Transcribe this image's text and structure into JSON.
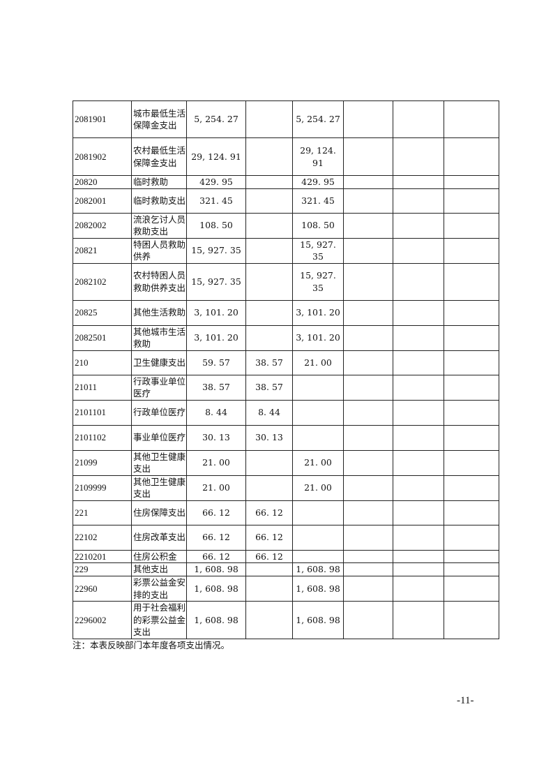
{
  "table": {
    "rows": [
      {
        "code": "2081901",
        "name": "城市最低生活保障金支出",
        "total": "5, 254. 27",
        "basic": "",
        "project": "5, 254. 27"
      },
      {
        "code": "2081902",
        "name": "农村最低生活保障金支出",
        "total": "29, 124. 91",
        "basic": "",
        "project": "29, 124. 91"
      },
      {
        "code": "20820",
        "name": "临时救助",
        "total": "429. 95",
        "basic": "",
        "project": "429. 95"
      },
      {
        "code": "2082001",
        "name": "临时救助支出",
        "total": "321. 45",
        "basic": "",
        "project": "321. 45"
      },
      {
        "code": "2082002",
        "name": "流浪乞讨人员救助支出",
        "total": "108. 50",
        "basic": "",
        "project": "108. 50"
      },
      {
        "code": "20821",
        "name": "特困人员救助供养",
        "total": "15, 927. 35",
        "basic": "",
        "project": "15, 927. 35"
      },
      {
        "code": "2082102",
        "name": "农村特困人员救助供养支出",
        "total": "15, 927. 35",
        "basic": "",
        "project": "15, 927. 35"
      },
      {
        "code": "20825",
        "name": "其他生活救助",
        "total": "3, 101. 20",
        "basic": "",
        "project": "3, 101. 20"
      },
      {
        "code": "2082501",
        "name": "其他城市生活救助",
        "total": "3, 101. 20",
        "basic": "",
        "project": "3, 101. 20"
      },
      {
        "code": "210",
        "name": "卫生健康支出",
        "total": "59. 57",
        "basic": "38. 57",
        "project": "21. 00"
      },
      {
        "code": "21011",
        "name": "行政事业单位医疗",
        "total": "38. 57",
        "basic": "38. 57",
        "project": ""
      },
      {
        "code": "2101101",
        "name": "行政单位医疗",
        "total": "8. 44",
        "basic": "8. 44",
        "project": ""
      },
      {
        "code": "2101102",
        "name": "事业单位医疗",
        "total": "30. 13",
        "basic": "30. 13",
        "project": ""
      },
      {
        "code": "21099",
        "name": "其他卫生健康支出",
        "total": "21. 00",
        "basic": "",
        "project": "21. 00"
      },
      {
        "code": "2109999",
        "name": "其他卫生健康支出",
        "total": "21. 00",
        "basic": "",
        "project": "21. 00"
      },
      {
        "code": "221",
        "name": "住房保障支出",
        "total": "66. 12",
        "basic": "66. 12",
        "project": ""
      },
      {
        "code": "22102",
        "name": "住房改革支出",
        "total": "66. 12",
        "basic": "66. 12",
        "project": ""
      },
      {
        "code": "2210201",
        "name": "住房公积金",
        "total": "66. 12",
        "basic": "66. 12",
        "project": ""
      },
      {
        "code": "229",
        "name": "其他支出",
        "total": "1, 608. 98",
        "basic": "",
        "project": "1, 608. 98"
      },
      {
        "code": "22960",
        "name": "彩票公益金安排的支出",
        "total": "1, 608. 98",
        "basic": "",
        "project": "1, 608. 98"
      },
      {
        "code": "2296002",
        "name": "用于社会福利的彩票公益金支出",
        "total": "1, 608. 98",
        "basic": "",
        "project": "1, 608. 98"
      }
    ]
  },
  "note": "注：本表反映部门本年度各项支出情况。",
  "page_number": "-11-"
}
